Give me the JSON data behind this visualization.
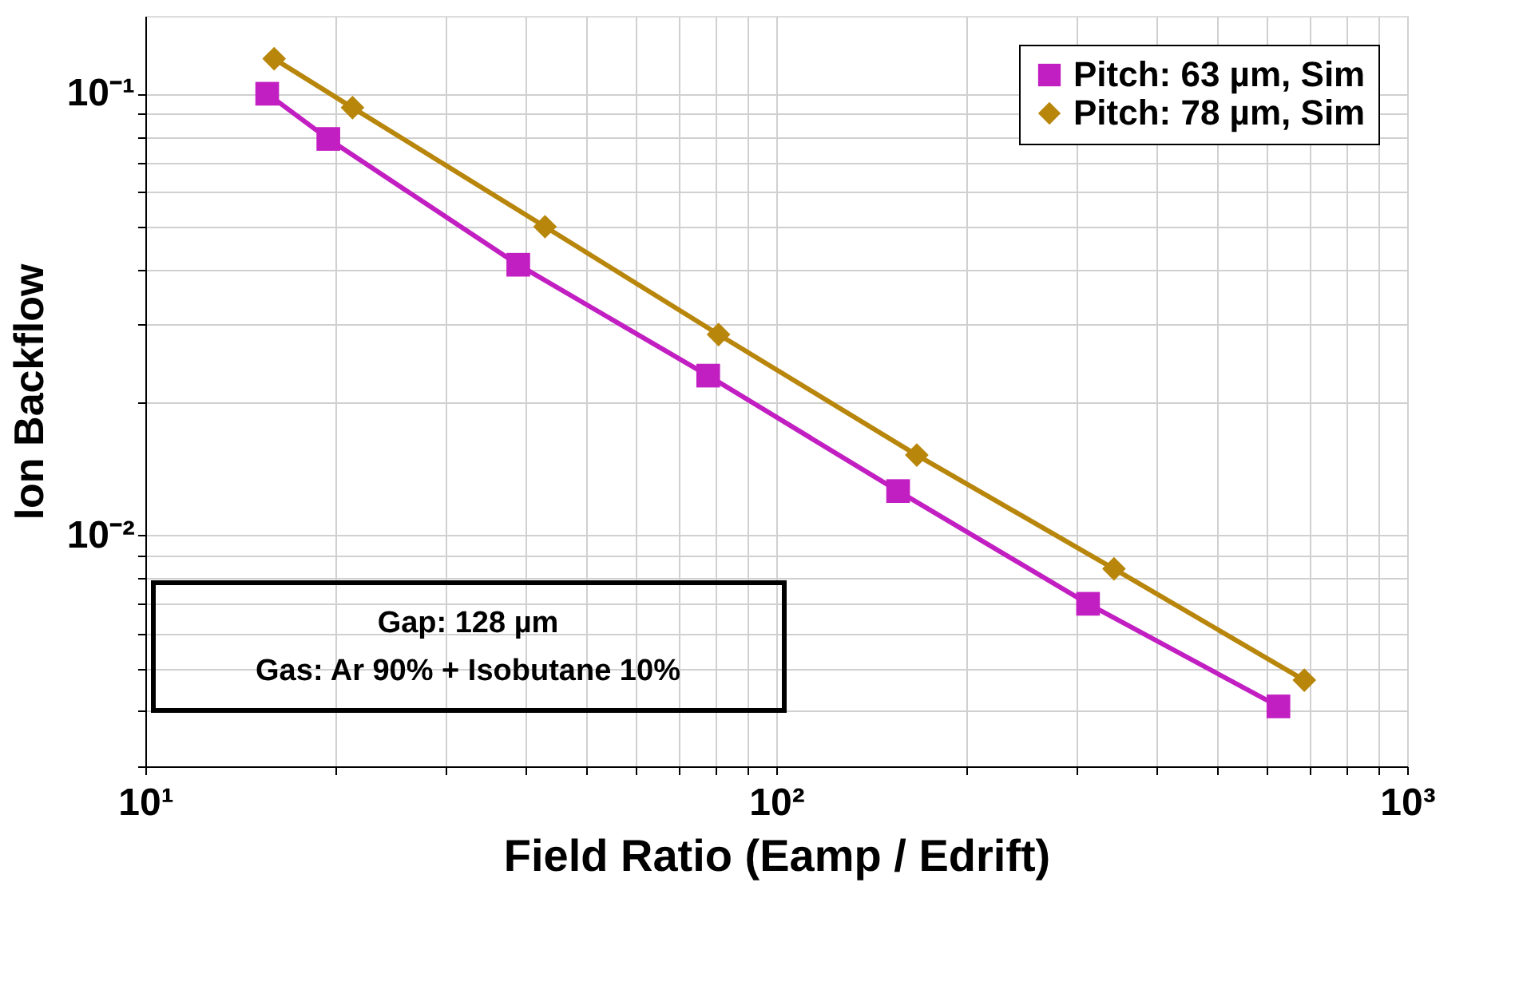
{
  "chart_data": {
    "type": "line",
    "xlabel": "Field Ratio (Eamp / Edrift)",
    "ylabel": "Ion Backflow",
    "log": "xy",
    "xlim": [
      10,
      1000
    ],
    "ylim": [
      0.003,
      0.15
    ],
    "xticks": [
      {
        "value": 10,
        "label": "10¹"
      },
      {
        "value": 100,
        "label": "10²"
      },
      {
        "value": 1000,
        "label": "10³"
      }
    ],
    "yticks": [
      {
        "value": 0.01,
        "label": "10⁻²"
      },
      {
        "value": 0.1,
        "label": "10⁻¹"
      }
    ],
    "grid": true,
    "legend": "top right",
    "line_style": "solid",
    "series": [
      {
        "name": "Pitch: 63 µm, Sim",
        "color": "#c21fc2",
        "marker": "square",
        "x": [
          15.6,
          19.5,
          39,
          78,
          156,
          312,
          625
        ],
        "values": [
          0.1,
          0.079,
          0.041,
          0.023,
          0.0126,
          0.007,
          0.0041
        ]
      },
      {
        "name": "Pitch: 78 µm, Sim",
        "color": "#b8860b",
        "marker": "diamond",
        "x": [
          16,
          21.3,
          43,
          81,
          167,
          343,
          687
        ],
        "values": [
          0.12,
          0.093,
          0.05,
          0.0285,
          0.0152,
          0.0084,
          0.0047
        ]
      }
    ],
    "annotations": [
      "Gap: 128 µm",
      "Gas: Ar 90% + Isobutane 10%"
    ]
  }
}
